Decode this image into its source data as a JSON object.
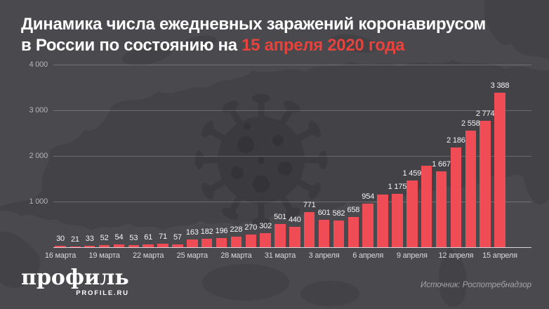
{
  "title": {
    "line1": "Динамика числа ежедневных заражений коронавирусом",
    "line2_prefix": "в России по состоянию на ",
    "line2_highlight": "15 апреля 2020 года",
    "highlight_color": "#e8423d"
  },
  "chart_data": {
    "type": "bar",
    "title": "Динамика числа ежедневных заражений коронавирусом в России по состоянию на 15 апреля 2020 года",
    "values": [
      30,
      21,
      33,
      52,
      54,
      53,
      61,
      71,
      57,
      163,
      182,
      196,
      228,
      270,
      302,
      501,
      440,
      771,
      601,
      582,
      658,
      954,
      1154,
      1175,
      1459,
      1786,
      1667,
      2186,
      2558,
      2774,
      3388
    ],
    "bar_labels": [
      "30",
      "21",
      "33",
      "52",
      "54",
      "53",
      "61",
      "71",
      "57",
      "163",
      "182",
      "196",
      "228",
      "270",
      "302",
      "501",
      "440",
      "771",
      "601",
      "582",
      "658",
      "954",
      "",
      "1 175",
      "1 459",
      "",
      "1 667",
      "2 186",
      "2 558",
      "2 774",
      "3 388"
    ],
    "x_tick_labels": [
      "16 марта",
      "19 марта",
      "22 марта",
      "25 марта",
      "28 марта",
      "31 марта",
      "3 апреля",
      "6 апреля",
      "9 апреля",
      "12 апреля",
      "15 апреля"
    ],
    "x_tick_every": 3,
    "y_ticks": [
      {
        "v": 1000,
        "label": "1 000"
      },
      {
        "v": 2000,
        "label": "2 000"
      },
      {
        "v": 3000,
        "label": "3 000"
      },
      {
        "v": 4000,
        "label": "4 000"
      }
    ],
    "ylim": [
      0,
      4000
    ],
    "bar_color": "#f04c55",
    "grid": true,
    "legend": false
  },
  "footer": {
    "logo_text": "профиль",
    "logo_sub": "PROFILE.RU",
    "source": "Источник: Роспотребнадзор"
  },
  "colors": {
    "background": "#4a4a4e",
    "map_silhouette": "#424247",
    "virus_icon": "#3a3a3f",
    "virus_holes": "#333338",
    "bar": "#f04c55",
    "accent_red": "#e8423d",
    "grid_line": "rgba(255,255,255,0.22)",
    "axis_line": "rgba(255,255,255,0.78)",
    "value_label": "#f4f4f6",
    "x_label": "#d8d8db",
    "y_label": "#b4b4b8",
    "source_text": "#a6a6aa"
  }
}
